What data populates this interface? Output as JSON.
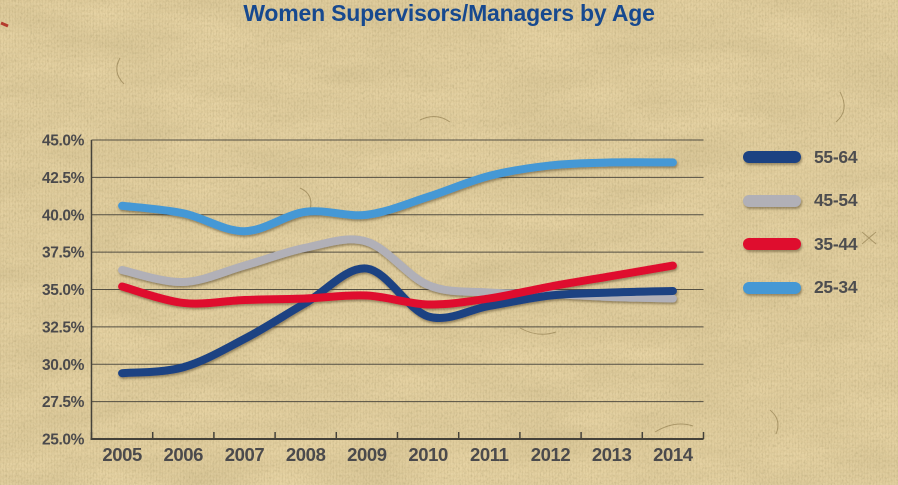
{
  "title_color": "#17498f",
  "background_color": "#e7d3a3",
  "axis": {
    "label_color": "#4b4a4c",
    "line_color": "#45423a"
  },
  "chart_data": {
    "type": "line",
    "title": "Women Supervisors/Managers by Age",
    "categories": [
      "2005",
      "2006",
      "2007",
      "2008",
      "2009",
      "2010",
      "2011",
      "2012",
      "2013",
      "2014"
    ],
    "series": [
      {
        "name": "55-64",
        "color": "#1c4282",
        "values": [
          29.4,
          29.8,
          31.7,
          34.1,
          36.4,
          33.2,
          33.9,
          34.6,
          34.8,
          34.9
        ]
      },
      {
        "name": "45-54",
        "color": "#b1b0b7",
        "values": [
          36.3,
          35.5,
          36.6,
          37.8,
          38.2,
          35.3,
          34.8,
          34.7,
          34.5,
          34.4
        ]
      },
      {
        "name": "35-44",
        "color": "#df0d2e",
        "values": [
          35.2,
          34.1,
          34.3,
          34.4,
          34.6,
          34.0,
          34.4,
          35.2,
          35.9,
          36.6
        ]
      },
      {
        "name": "25-34",
        "color": "#4598d5",
        "values": [
          40.6,
          40.1,
          38.9,
          40.2,
          40.0,
          41.2,
          42.6,
          43.3,
          43.5,
          43.5
        ]
      }
    ],
    "legend_order": [
      "55-64",
      "45-54",
      "35-44",
      "25-34"
    ],
    "draw_order": [
      "45-54",
      "55-64",
      "35-44",
      "25-34"
    ],
    "ylim": [
      25,
      45
    ],
    "ytick_step": 2.5,
    "ytick_labels": [
      "25.0%",
      "27.5%",
      "30.0%",
      "32.5%",
      "35.0%",
      "37.5%",
      "40.0%",
      "42.5%",
      "45.0%"
    ],
    "xlabel": "",
    "ylabel": "",
    "grid": true,
    "line_style": "smooth",
    "legend_position": "right"
  }
}
